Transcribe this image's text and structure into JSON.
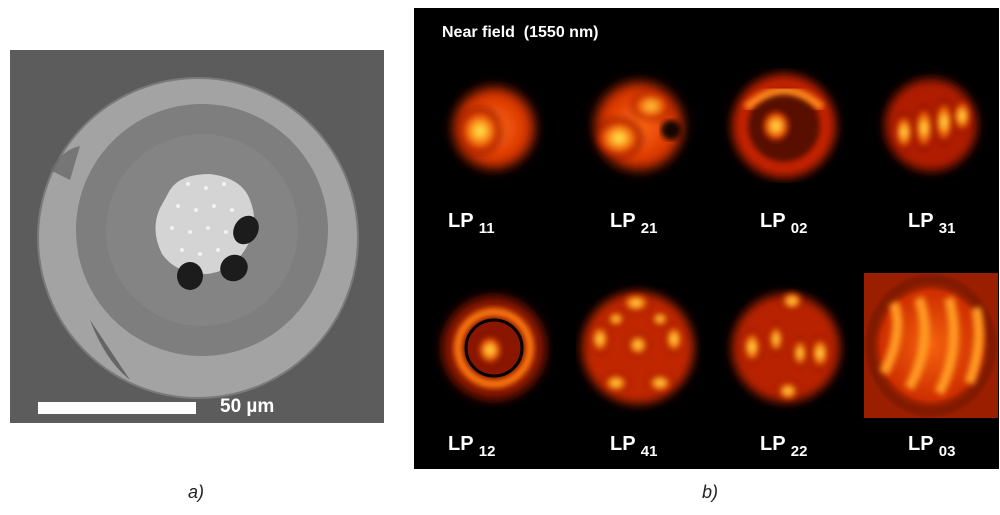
{
  "panel_a": {
    "scale_label": "50 µm",
    "caption": "a)"
  },
  "panel_b": {
    "title": "Near field  (1550 nm)",
    "caption": "b)",
    "modes": [
      {
        "prefix": "LP ",
        "sub": "11"
      },
      {
        "prefix": "LP ",
        "sub": "21"
      },
      {
        "prefix": "LP ",
        "sub": "02"
      },
      {
        "prefix": "LP ",
        "sub": "31"
      },
      {
        "prefix": "LP ",
        "sub": "12"
      },
      {
        "prefix": "LP ",
        "sub": "41"
      },
      {
        "prefix": "LP ",
        "sub": "22"
      },
      {
        "prefix": "LP ",
        "sub": "03"
      }
    ]
  }
}
